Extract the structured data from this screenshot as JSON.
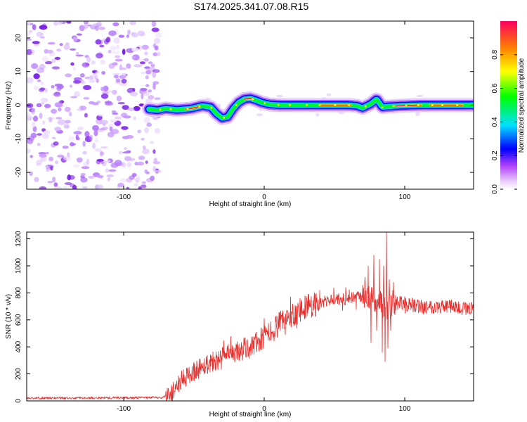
{
  "title": "S174.2025.341.07.08.R15",
  "chart_data": [
    {
      "type": "heatmap",
      "name": "spectrogram",
      "xlabel": "Height of straight line (km)",
      "ylabel": "Frequency (Hz)",
      "xlim": [
        -169,
        149
      ],
      "ylim": [
        -25,
        25
      ],
      "xticks": [
        -100,
        0,
        100
      ],
      "xtick_labels": [
        "-100",
        "0",
        "100"
      ],
      "yticks": [
        -20,
        -10,
        0,
        10,
        20
      ],
      "ytick_labels": [
        "-20",
        "-10",
        "0",
        "10",
        "20"
      ],
      "noise_region_x": [
        -169,
        -73
      ],
      "ridge_x": [
        -82,
        -76,
        -70,
        -62,
        -52,
        -44,
        -38,
        -34,
        -30,
        -26,
        -22,
        -18,
        -14,
        -10,
        -6,
        -2,
        4,
        12,
        20,
        30,
        40,
        50,
        60,
        66,
        70,
        76,
        80,
        84,
        88,
        96,
        110,
        130,
        149
      ],
      "ridge_freq": [
        -1.2,
        -1.5,
        -1.0,
        -1.4,
        -1.0,
        -0.2,
        -0.6,
        -2.5,
        -3.8,
        -3.5,
        -1.0,
        0.8,
        1.8,
        2.0,
        1.5,
        0.8,
        0.2,
        0.0,
        0.0,
        0.0,
        0.0,
        0.0,
        0.0,
        -0.2,
        -0.8,
        0.4,
        1.8,
        -0.6,
        -0.4,
        -0.2,
        0.0,
        0.0,
        0.0
      ],
      "colorbar": {
        "label": "Normalized spectral amplitude",
        "range": [
          0,
          1
        ],
        "ticks": [
          0.0,
          0.2,
          0.4,
          0.6,
          0.8
        ],
        "tick_labels": [
          "0.0",
          "0.2",
          "0.4",
          "0.6",
          "0.8"
        ],
        "colors": [
          "#ffffff",
          "#c060ff",
          "#0000ff",
          "#00e0ff",
          "#00ff00",
          "#ffff00",
          "#ff8000",
          "#ff0060"
        ]
      }
    },
    {
      "type": "line",
      "name": "snr",
      "xlabel": "Height of straight line (km)",
      "ylabel": "SNR (10 * v/v)",
      "xlim": [
        -169,
        149
      ],
      "ylim": [
        0,
        1250
      ],
      "xticks": [
        -100,
        0,
        100
      ],
      "xtick_labels": [
        "-100",
        "0",
        "100"
      ],
      "yticks": [
        0,
        200,
        400,
        600,
        800,
        1000,
        1200
      ],
      "ytick_labels": [
        "0",
        "200",
        "400",
        "600",
        "800",
        "1000",
        "1200"
      ],
      "color": "#e8302e",
      "trend_x": [
        -169,
        -120,
        -72,
        -66,
        -60,
        -50,
        -40,
        -30,
        -20,
        -10,
        0,
        10,
        20,
        30,
        40,
        50,
        60,
        70,
        78,
        84,
        88,
        94,
        100,
        110,
        120,
        130,
        140,
        149
      ],
      "trend_y": [
        20,
        22,
        25,
        60,
        140,
        220,
        280,
        320,
        360,
        400,
        470,
        560,
        640,
        700,
        730,
        750,
        760,
        770,
        760,
        720,
        700,
        720,
        720,
        700,
        700,
        700,
        690,
        690
      ],
      "spikes_x": [
        74,
        76,
        78,
        80,
        82,
        84,
        85,
        86,
        87,
        88,
        89,
        90,
        92
      ],
      "spikes_y": [
        1000,
        430,
        1080,
        520,
        1050,
        360,
        1000,
        290,
        1250,
        390,
        900,
        520,
        880
      ]
    }
  ]
}
